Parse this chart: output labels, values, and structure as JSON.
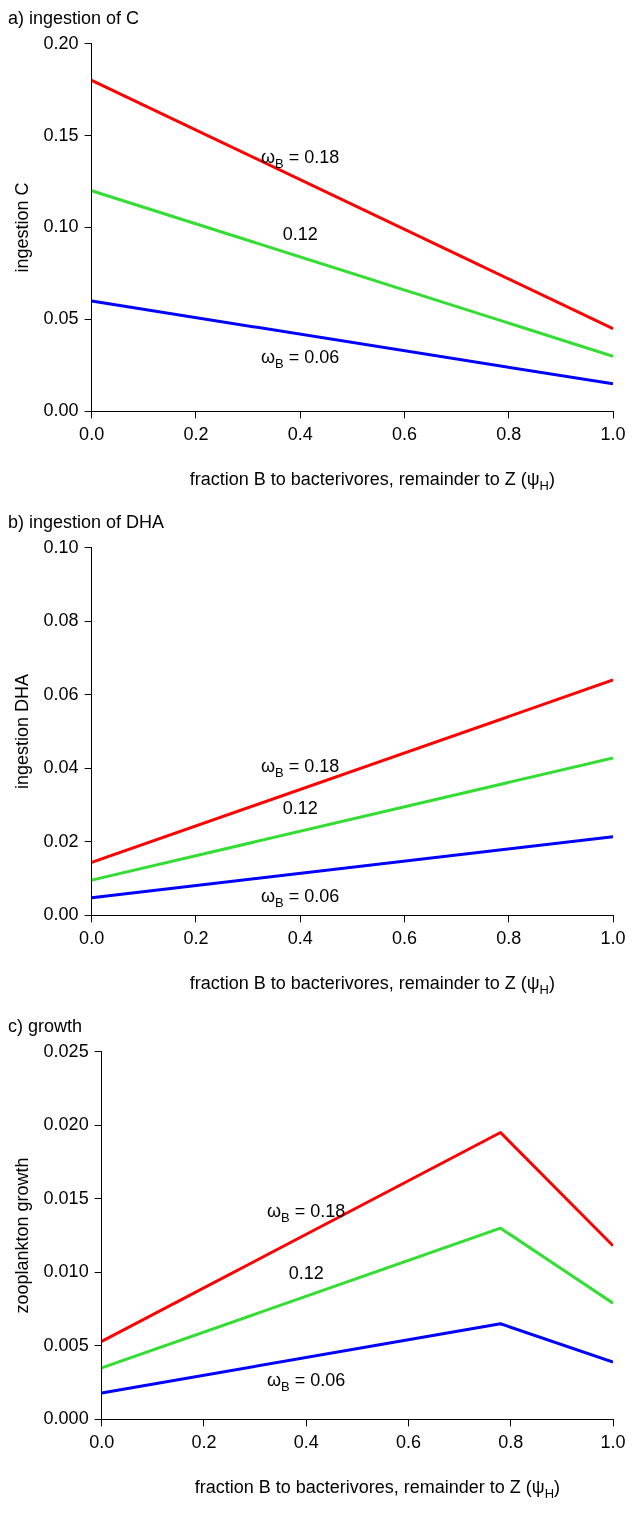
{
  "chart_data": [
    {
      "type": "line",
      "title": "a) ingestion of C",
      "xlabel": "fraction B to bacterivores, remainder to Z (ψ$_{H}$)",
      "ylabel": "ingestion C",
      "xlim": [
        0,
        1
      ],
      "xticks": [
        {
          "value": 0,
          "label": "0.0"
        },
        {
          "value": 0.2,
          "label": "0.2"
        },
        {
          "value": 0.4,
          "label": "0.4"
        },
        {
          "value": 0.6,
          "label": "0.6"
        },
        {
          "value": 0.8,
          "label": "0.8"
        },
        {
          "value": 1,
          "label": "1.0"
        }
      ],
      "ylim": [
        0,
        0.2
      ],
      "yticks": [
        {
          "value": 0,
          "label": "0.00"
        },
        {
          "value": 0.05,
          "label": "0.05"
        },
        {
          "value": 0.1,
          "label": "0.10"
        },
        {
          "value": 0.15,
          "label": "0.15"
        },
        {
          "value": 0.2,
          "label": "0.20"
        }
      ],
      "grid": false,
      "legend": false,
      "marker": "none",
      "line_style": "solid",
      "series": [
        {
          "color": "#ff0000",
          "x": [
            0,
            1
          ],
          "values": [
            0.18,
            0.045
          ]
        },
        {
          "color": "#33dd33",
          "x": [
            0,
            1
          ],
          "values": [
            0.12,
            0.03
          ]
        },
        {
          "color": "#0000ff",
          "x": [
            0,
            1
          ],
          "values": [
            0.06,
            0.015
          ]
        }
      ],
      "annotations": [
        "ω$_{B}$ = 0.18",
        "0.12",
        "ω$_{B}$ = 0.06"
      ]
    },
    {
      "type": "line",
      "title": "b) ingestion of DHA",
      "xlabel": "fraction B to bacterivores, remainder to Z (ψ$_{H}$)",
      "ylabel": "ingestion DHA",
      "xlim": [
        0,
        1
      ],
      "xticks": [
        {
          "value": 0,
          "label": "0.0"
        },
        {
          "value": 0.2,
          "label": "0.2"
        },
        {
          "value": 0.4,
          "label": "0.4"
        },
        {
          "value": 0.6,
          "label": "0.6"
        },
        {
          "value": 0.8,
          "label": "0.8"
        },
        {
          "value": 1,
          "label": "1.0"
        }
      ],
      "ylim": [
        0,
        0.1
      ],
      "yticks": [
        {
          "value": 0,
          "label": "0.00"
        },
        {
          "value": 0.02,
          "label": "0.02"
        },
        {
          "value": 0.04,
          "label": "0.04"
        },
        {
          "value": 0.06,
          "label": "0.06"
        },
        {
          "value": 0.08,
          "label": "0.08"
        },
        {
          "value": 0.1,
          "label": "0.10"
        }
      ],
      "grid": false,
      "legend": false,
      "marker": "none",
      "line_style": "solid",
      "series": [
        {
          "color": "#ff0000",
          "x": [
            0,
            1
          ],
          "values": [
            0.0144,
            0.064
          ]
        },
        {
          "color": "#33dd33",
          "x": [
            0,
            1
          ],
          "values": [
            0.0096,
            0.0428
          ]
        },
        {
          "color": "#0000ff",
          "x": [
            0,
            1
          ],
          "values": [
            0.0048,
            0.0214
          ]
        }
      ],
      "annotations": [
        "ω$_{B}$ = 0.18",
        "0.12",
        "ω$_{B}$ = 0.06"
      ]
    },
    {
      "type": "line",
      "title": "c) growth",
      "xlabel": "fraction B to bacterivores, remainder to Z (ψ$_{H}$)",
      "ylabel": "zooplankton growth",
      "xlim": [
        0,
        1
      ],
      "xticks": [
        {
          "value": 0,
          "label": "0.0"
        },
        {
          "value": 0.2,
          "label": "0.2"
        },
        {
          "value": 0.4,
          "label": "0.4"
        },
        {
          "value": 0.6,
          "label": "0.6"
        },
        {
          "value": 0.8,
          "label": "0.8"
        },
        {
          "value": 1,
          "label": "1.0"
        }
      ],
      "ylim": [
        0,
        0.025
      ],
      "yticks": [
        {
          "value": 0,
          "label": "0.000"
        },
        {
          "value": 0.005,
          "label": "0.005"
        },
        {
          "value": 0.01,
          "label": "0.010"
        },
        {
          "value": 0.015,
          "label": "0.015"
        },
        {
          "value": 0.02,
          "label": "0.020"
        },
        {
          "value": 0.025,
          "label": "0.025"
        }
      ],
      "grid": false,
      "legend": false,
      "marker": "none",
      "line_style": "solid",
      "series": [
        {
          "color": "#ff0000",
          "x": [
            0,
            0.78,
            1
          ],
          "values": [
            0.0053,
            0.0195,
            0.0118
          ]
        },
        {
          "color": "#33dd33",
          "x": [
            0,
            0.78,
            1
          ],
          "values": [
            0.0035,
            0.013,
            0.0079
          ]
        },
        {
          "color": "#0000ff",
          "x": [
            0,
            0.78,
            1
          ],
          "values": [
            0.0018,
            0.0065,
            0.0039
          ]
        }
      ],
      "annotations": [
        "ω$_{B}$ = 0.18",
        "0.12",
        "ω$_{B}$ = 0.06"
      ]
    }
  ]
}
